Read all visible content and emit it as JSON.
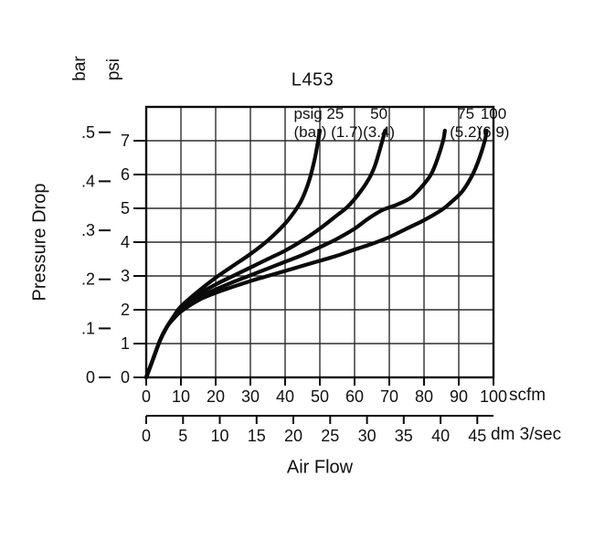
{
  "chart_data": {
    "type": "line",
    "title": "L453",
    "xlabel": "Air Flow",
    "ylabel": "Pressure Drop",
    "x_range_scfm": [
      0,
      100
    ],
    "y_range_psi": [
      0,
      8
    ],
    "psi_per_bar": 14.5,
    "scfm_per_dm3s": 2.119,
    "x_axes": [
      {
        "unit": "scfm",
        "ticks": [
          0,
          10,
          20,
          30,
          40,
          50,
          60,
          70,
          80,
          90,
          100
        ]
      },
      {
        "unit": "dm 3/sec",
        "ticks": [
          0,
          5,
          10,
          15,
          20,
          25,
          30,
          35,
          40,
          45
        ]
      }
    ],
    "y_axes": [
      {
        "unit": "bar",
        "tick_labels": [
          "0",
          ".1",
          ".2",
          ".3",
          ".4",
          ".5"
        ],
        "tick_values": [
          0,
          0.1,
          0.2,
          0.3,
          0.4,
          0.5
        ]
      },
      {
        "unit": "psi",
        "tick_labels": [
          "0",
          "1",
          "2",
          "3",
          "4",
          "5",
          "6",
          "7"
        ],
        "tick_values": [
          0,
          1,
          2,
          3,
          4,
          5,
          6,
          7
        ]
      }
    ],
    "series": [
      {
        "name": "25 psig (1.7 bar) inlet pressure",
        "psig": "25",
        "bar": "1.7",
        "points": [
          [
            0,
            0
          ],
          [
            2,
            0.55
          ],
          [
            4,
            1.1
          ],
          [
            6,
            1.5
          ],
          [
            8,
            1.82
          ],
          [
            10,
            2.1
          ],
          [
            15,
            2.55
          ],
          [
            20,
            2.95
          ],
          [
            25,
            3.3
          ],
          [
            30,
            3.65
          ],
          [
            35,
            4.05
          ],
          [
            40,
            4.55
          ],
          [
            43,
            4.95
          ],
          [
            45,
            5.3
          ],
          [
            47,
            5.85
          ],
          [
            48.5,
            6.45
          ],
          [
            49.5,
            7.0
          ],
          [
            50,
            7.3
          ]
        ]
      },
      {
        "name": "50 psig (3.4 bar) inlet pressure",
        "psig": "50",
        "bar": "3.4",
        "points": [
          [
            0,
            0
          ],
          [
            2,
            0.55
          ],
          [
            4,
            1.1
          ],
          [
            6,
            1.5
          ],
          [
            8,
            1.8
          ],
          [
            10,
            2.05
          ],
          [
            15,
            2.45
          ],
          [
            20,
            2.75
          ],
          [
            25,
            3.0
          ],
          [
            30,
            3.25
          ],
          [
            35,
            3.5
          ],
          [
            40,
            3.75
          ],
          [
            45,
            4.05
          ],
          [
            50,
            4.4
          ],
          [
            55,
            4.8
          ],
          [
            58,
            5.05
          ],
          [
            61,
            5.4
          ],
          [
            64,
            5.85
          ],
          [
            66,
            6.3
          ],
          [
            68,
            7.0
          ],
          [
            68.8,
            7.3
          ]
        ]
      },
      {
        "name": "75 psig (5.2 bar) inlet pressure",
        "psig": "75",
        "bar": "5.2",
        "points": [
          [
            0,
            0
          ],
          [
            2,
            0.55
          ],
          [
            4,
            1.1
          ],
          [
            6,
            1.5
          ],
          [
            8,
            1.78
          ],
          [
            10,
            2.0
          ],
          [
            15,
            2.35
          ],
          [
            20,
            2.6
          ],
          [
            25,
            2.82
          ],
          [
            30,
            3.02
          ],
          [
            35,
            3.22
          ],
          [
            40,
            3.42
          ],
          [
            45,
            3.62
          ],
          [
            50,
            3.85
          ],
          [
            55,
            4.1
          ],
          [
            60,
            4.4
          ],
          [
            64,
            4.7
          ],
          [
            68,
            4.95
          ],
          [
            72,
            5.1
          ],
          [
            76,
            5.3
          ],
          [
            79,
            5.6
          ],
          [
            82,
            6.0
          ],
          [
            84,
            6.5
          ],
          [
            85.5,
            7.0
          ],
          [
            86,
            7.3
          ]
        ]
      },
      {
        "name": "100 psig (6.9 bar) inlet pressure",
        "psig": "100",
        "bar": "6.9",
        "points": [
          [
            0,
            0
          ],
          [
            2,
            0.55
          ],
          [
            4,
            1.1
          ],
          [
            6,
            1.5
          ],
          [
            8,
            1.75
          ],
          [
            10,
            1.95
          ],
          [
            15,
            2.28
          ],
          [
            20,
            2.5
          ],
          [
            25,
            2.68
          ],
          [
            30,
            2.85
          ],
          [
            35,
            3.0
          ],
          [
            40,
            3.15
          ],
          [
            45,
            3.3
          ],
          [
            50,
            3.45
          ],
          [
            55,
            3.6
          ],
          [
            60,
            3.78
          ],
          [
            65,
            3.95
          ],
          [
            70,
            4.15
          ],
          [
            75,
            4.4
          ],
          [
            80,
            4.65
          ],
          [
            85,
            4.95
          ],
          [
            88,
            5.2
          ],
          [
            91,
            5.5
          ],
          [
            94,
            6.0
          ],
          [
            96,
            6.5
          ],
          [
            97.5,
            7.0
          ],
          [
            98,
            7.3
          ]
        ]
      }
    ],
    "curve_labels": [
      {
        "line1": "psig 25",
        "line2": "(bar) (1.7)",
        "x_scfm": 42.5,
        "anchor": "start"
      },
      {
        "line1": "50",
        "line2": "(3.4)",
        "x_scfm": 67,
        "anchor": "middle"
      },
      {
        "line1": "75",
        "line2": "(5.2)",
        "x_scfm": 92,
        "anchor": "middle"
      },
      {
        "line1": "100",
        "line2": "(6.9)",
        "x_scfm": 100,
        "anchor": "middle"
      }
    ],
    "colors": {
      "line": "#0a0a0a",
      "grid": "#2f2f2f",
      "text": "#111111",
      "background": "#ffffff"
    }
  }
}
